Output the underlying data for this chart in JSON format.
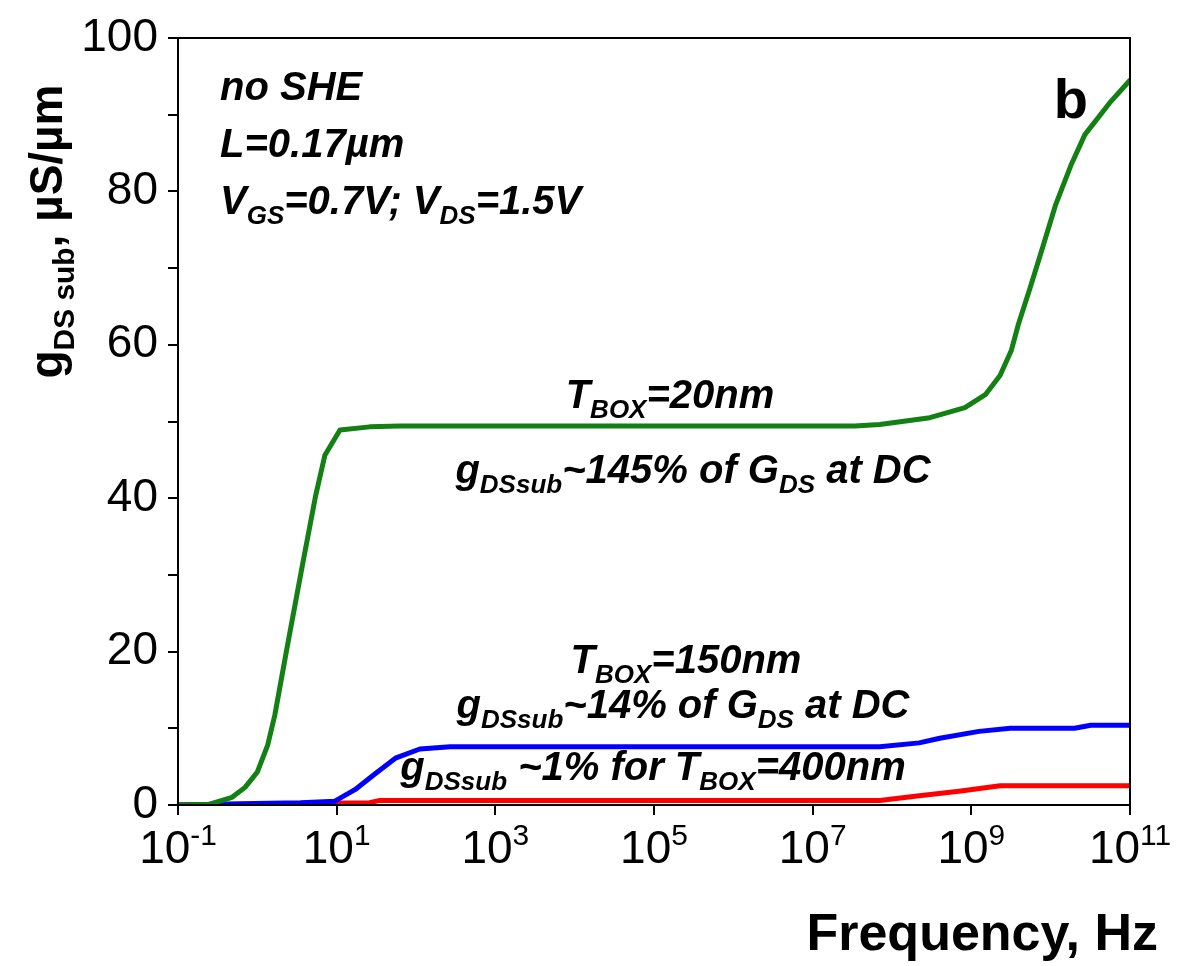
{
  "chart_data": {
    "type": "line",
    "xlabel": "Frequency, Hz",
    "ylabel": "g$_{DS sub}$, µS/µm",
    "log": "x",
    "xlim": [
      0.1,
      100000000000
    ],
    "ylim": [
      0,
      100
    ],
    "xticks": [
      {
        "value": 0.1,
        "label": "10$^{-1}$"
      },
      {
        "value": 10,
        "label": "10$^{1}$"
      },
      {
        "value": 1000,
        "label": "10$^{3}$"
      },
      {
        "value": 100000,
        "label": "10$^{5}$"
      },
      {
        "value": 10000000,
        "label": "10$^{7}$"
      },
      {
        "value": 1000000000,
        "label": "10$^{9}$"
      },
      {
        "value": 100000000000,
        "label": "10$^{11}$"
      }
    ],
    "yticks": [
      0,
      {
        "value": 10,
        "label": null
      },
      20,
      {
        "value": 30,
        "label": null
      },
      40,
      {
        "value": 50,
        "label": null
      },
      60,
      {
        "value": 70,
        "label": null
      },
      80,
      {
        "value": 90,
        "label": null
      },
      100
    ],
    "grid": false,
    "legend": false,
    "marker": "none",
    "line_style": "solid",
    "series": [
      {
        "color": "#138013",
        "x": [
          0.1,
          0.25,
          0.48,
          0.7,
          1.0,
          1.35,
          1.66,
          2.34,
          3.6,
          5.4,
          7.1,
          11,
          26,
          63,
          34000000,
          70000000,
          300000000,
          830000000,
          1500000000,
          2300000000,
          3200000000,
          3900000000,
          5500000000,
          7400000000,
          11500000000,
          18000000000,
          27000000000,
          55000000000,
          100000000000
        ],
        "values": [
          0,
          0.1,
          1.0,
          2.3,
          4.3,
          7.8,
          11.7,
          20.2,
          30.6,
          40.2,
          45.6,
          48.9,
          49.3,
          49.4,
          49.4,
          49.6,
          50.5,
          51.8,
          53.5,
          56,
          59.3,
          62.6,
          67.4,
          71.7,
          78.2,
          83.4,
          87.4,
          91.5,
          94.5
        ]
      },
      {
        "color": "#0000ff",
        "x": [
          0.1,
          3.5,
          9.5,
          17,
          30,
          55,
          112,
          270,
          70000000,
          220000000,
          400000000,
          1250000000,
          3100000000,
          20000000000,
          32000000000,
          100000000000
        ],
        "values": [
          0,
          0.3,
          0.5,
          2.0,
          4.0,
          6.1,
          7.3,
          7.6,
          7.6,
          8.1,
          8.7,
          9.6,
          10.0,
          10.0,
          10.4,
          10.4
        ]
      },
      {
        "color": "#ff0000",
        "x": [
          0.1,
          26,
          35,
          70000000,
          220000000,
          700000000,
          2300000000,
          100000000000
        ],
        "values": [
          0,
          0.3,
          0.6,
          0.6,
          1.2,
          1.8,
          2.5,
          2.5
        ]
      }
    ],
    "annotations": [
      "no SHE",
      "L=0.17µm",
      "V$_{GS}$=0.7V; V$_{DS}$=1.5V",
      "b",
      "T$_{BOX}$=20nm",
      "g$_{DSsub}$~145% of G$_{DS}$ at DC",
      "T$_{BOX}$=150nm",
      "g$_{DSsub}$~14% of G$_{DS}$ at DC",
      "g$_{DSsub}$ ~1% for T$_{BOX}$=400nm"
    ]
  }
}
